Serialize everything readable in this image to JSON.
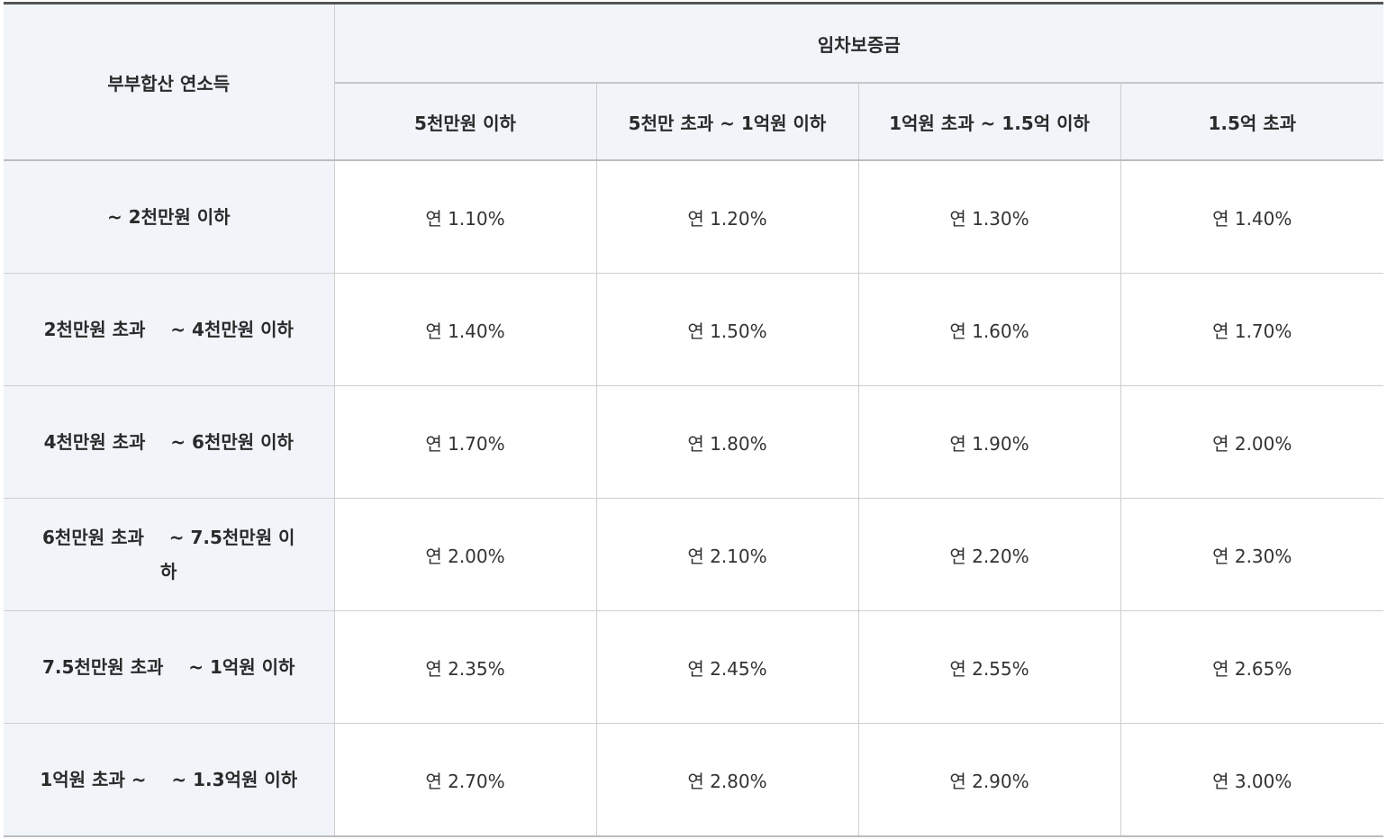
{
  "table": {
    "income_header": "부부합산 연소득",
    "deposit_header": "임차보증금",
    "deposit_bands": [
      "5천만원 이하",
      "5천만 초과 ~ 1억원 이하",
      "1억원 초과 ~ 1.5억 이하",
      "1.5억 초과"
    ],
    "rows": [
      {
        "income": "~ 2천만원 이하",
        "rates": [
          "연 1.10%",
          "연 1.20%",
          "연 1.30%",
          "연 1.40%"
        ]
      },
      {
        "income": "2천만원 초과    ~ 4천만원 이하",
        "rates": [
          "연 1.40%",
          "연 1.50%",
          "연 1.60%",
          "연 1.70%"
        ]
      },
      {
        "income": "4천만원 초과    ~ 6천만원 이하",
        "rates": [
          "연 1.70%",
          "연 1.80%",
          "연 1.90%",
          "연 2.00%"
        ]
      },
      {
        "income": "6천만원 초과    ~ 7.5천만원 이하",
        "rates": [
          "연 2.00%",
          "연 2.10%",
          "연 2.20%",
          "연 2.30%"
        ]
      },
      {
        "income": "7.5천만원 초과    ~ 1억원 이하",
        "rates": [
          "연 2.35%",
          "연 2.45%",
          "연 2.55%",
          "연 2.65%"
        ]
      },
      {
        "income": "1억원 초과 ~    ~ 1.3억원 이하",
        "rates": [
          "연 2.70%",
          "연 2.80%",
          "연 2.90%",
          "연 3.00%"
        ]
      }
    ]
  }
}
